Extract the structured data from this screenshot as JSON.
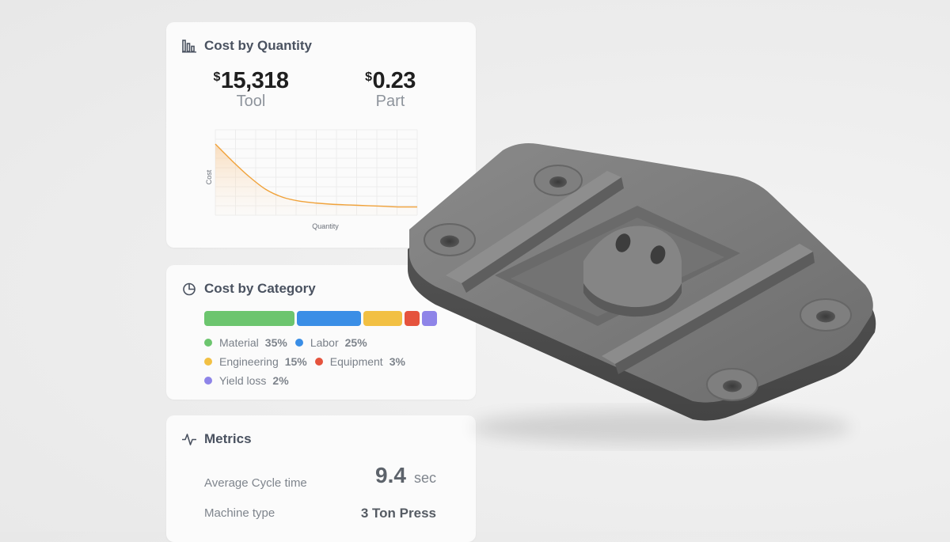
{
  "cost_by_quantity": {
    "title": "Cost by Quantity",
    "icon": "bar-chart-icon",
    "tool": {
      "currency": "$",
      "value": "15,318",
      "label": "Tool"
    },
    "part": {
      "currency": "$",
      "value": "0.23",
      "label": "Part"
    },
    "chart_data": {
      "type": "area",
      "title": "",
      "xlabel": "Quantity",
      "ylabel": "Cost",
      "grid": true,
      "x": [
        0,
        1,
        2,
        3,
        4,
        5,
        6,
        7,
        8,
        9,
        10,
        11,
        12
      ],
      "series": [
        {
          "values": [
            1.0,
            0.74,
            0.5,
            0.3,
            0.18,
            0.12,
            0.09,
            0.07,
            0.06,
            0.05,
            0.04,
            0.03,
            0.03
          ]
        }
      ],
      "accent": "#f0a23a"
    }
  },
  "cost_by_category": {
    "title": "Cost by Category",
    "icon": "pie-chart-icon",
    "categories": [
      {
        "name": "Material",
        "pct": "35%",
        "share": 35,
        "color": "#6cc56e"
      },
      {
        "name": "Labor",
        "pct": "25%",
        "share": 25,
        "color": "#3a8ee6"
      },
      {
        "name": "Engineering",
        "pct": "15%",
        "share": 15,
        "color": "#f2c043"
      },
      {
        "name": "Equipment",
        "pct": "3%",
        "share": 3,
        "color": "#e5533d"
      },
      {
        "name": "Yield loss",
        "pct": "2%",
        "share": 2,
        "color": "#8e84e8"
      }
    ]
  },
  "metrics": {
    "title": "Metrics",
    "icon": "activity-pulse-icon",
    "cycle_time": {
      "label": "Average Cycle time",
      "value": "9.4",
      "unit": "sec"
    },
    "machine_type": {
      "label": "Machine type",
      "value": "3 Ton Press"
    }
  },
  "part_render": {
    "icon": "molded-part-3d-icon",
    "color": "#6f6f6f"
  }
}
